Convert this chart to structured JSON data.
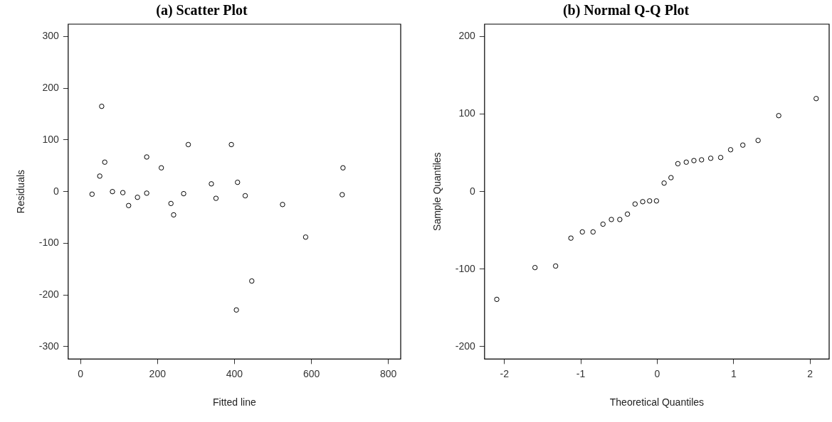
{
  "chart_data": [
    {
      "type": "scatter",
      "title": "(a) Scatter Plot",
      "xlabel": "Fitted line",
      "ylabel": "Residuals",
      "marker": "circle",
      "grid": false,
      "legend": false,
      "x": [
        30,
        50,
        55,
        63,
        83,
        110,
        125,
        148,
        172,
        172,
        210,
        235,
        242,
        268,
        280,
        340,
        352,
        392,
        405,
        408,
        428,
        445,
        525,
        585,
        680,
        682
      ],
      "series": [
        {
          "color": "#000000",
          "values": [
            -5,
            30,
            165,
            57,
            0,
            -2,
            -27,
            -11,
            67,
            -3,
            46,
            -23,
            -45,
            -4,
            91,
            15,
            -13,
            91,
            -229,
            18,
            -8,
            -173,
            -25,
            -88,
            -6,
            46
          ]
        }
      ],
      "xlim": [
        -32,
        832
      ],
      "xticks": [
        0,
        200,
        400,
        600,
        800
      ],
      "ylim": [
        -324,
        324
      ],
      "yticks": [
        -300,
        -200,
        -100,
        0,
        100,
        200,
        300
      ]
    },
    {
      "type": "scatter",
      "title": "(b) Normal Q-Q Plot",
      "xlabel": "Theoretical Quantiles",
      "ylabel": "Sample Quantiles",
      "marker": "circle",
      "grid": false,
      "legend": false,
      "x": [
        -2.1,
        -1.6,
        -1.33,
        -1.13,
        -0.98,
        -0.84,
        -0.71,
        -0.6,
        -0.49,
        -0.39,
        -0.29,
        -0.19,
        -0.1,
        -0.01,
        0.09,
        0.18,
        0.27,
        0.38,
        0.48,
        0.58,
        0.7,
        0.83,
        0.96,
        1.12,
        1.32,
        1.59,
        2.08
      ],
      "series": [
        {
          "color": "#000000",
          "values": [
            -139,
            -98,
            -96,
            -60,
            -52,
            -52,
            -42,
            -36,
            -36,
            -29,
            -16,
            -13,
            -12,
            -12,
            11,
            18,
            36,
            38,
            40,
            41,
            43,
            44,
            54,
            60,
            66,
            98,
            120
          ]
        }
      ],
      "xlim": [
        -2.26,
        2.25
      ],
      "xticks": [
        -2,
        -1,
        0,
        1,
        2
      ],
      "ylim": [
        -216,
        216
      ],
      "yticks": [
        -200,
        -100,
        0,
        100,
        200
      ]
    }
  ]
}
